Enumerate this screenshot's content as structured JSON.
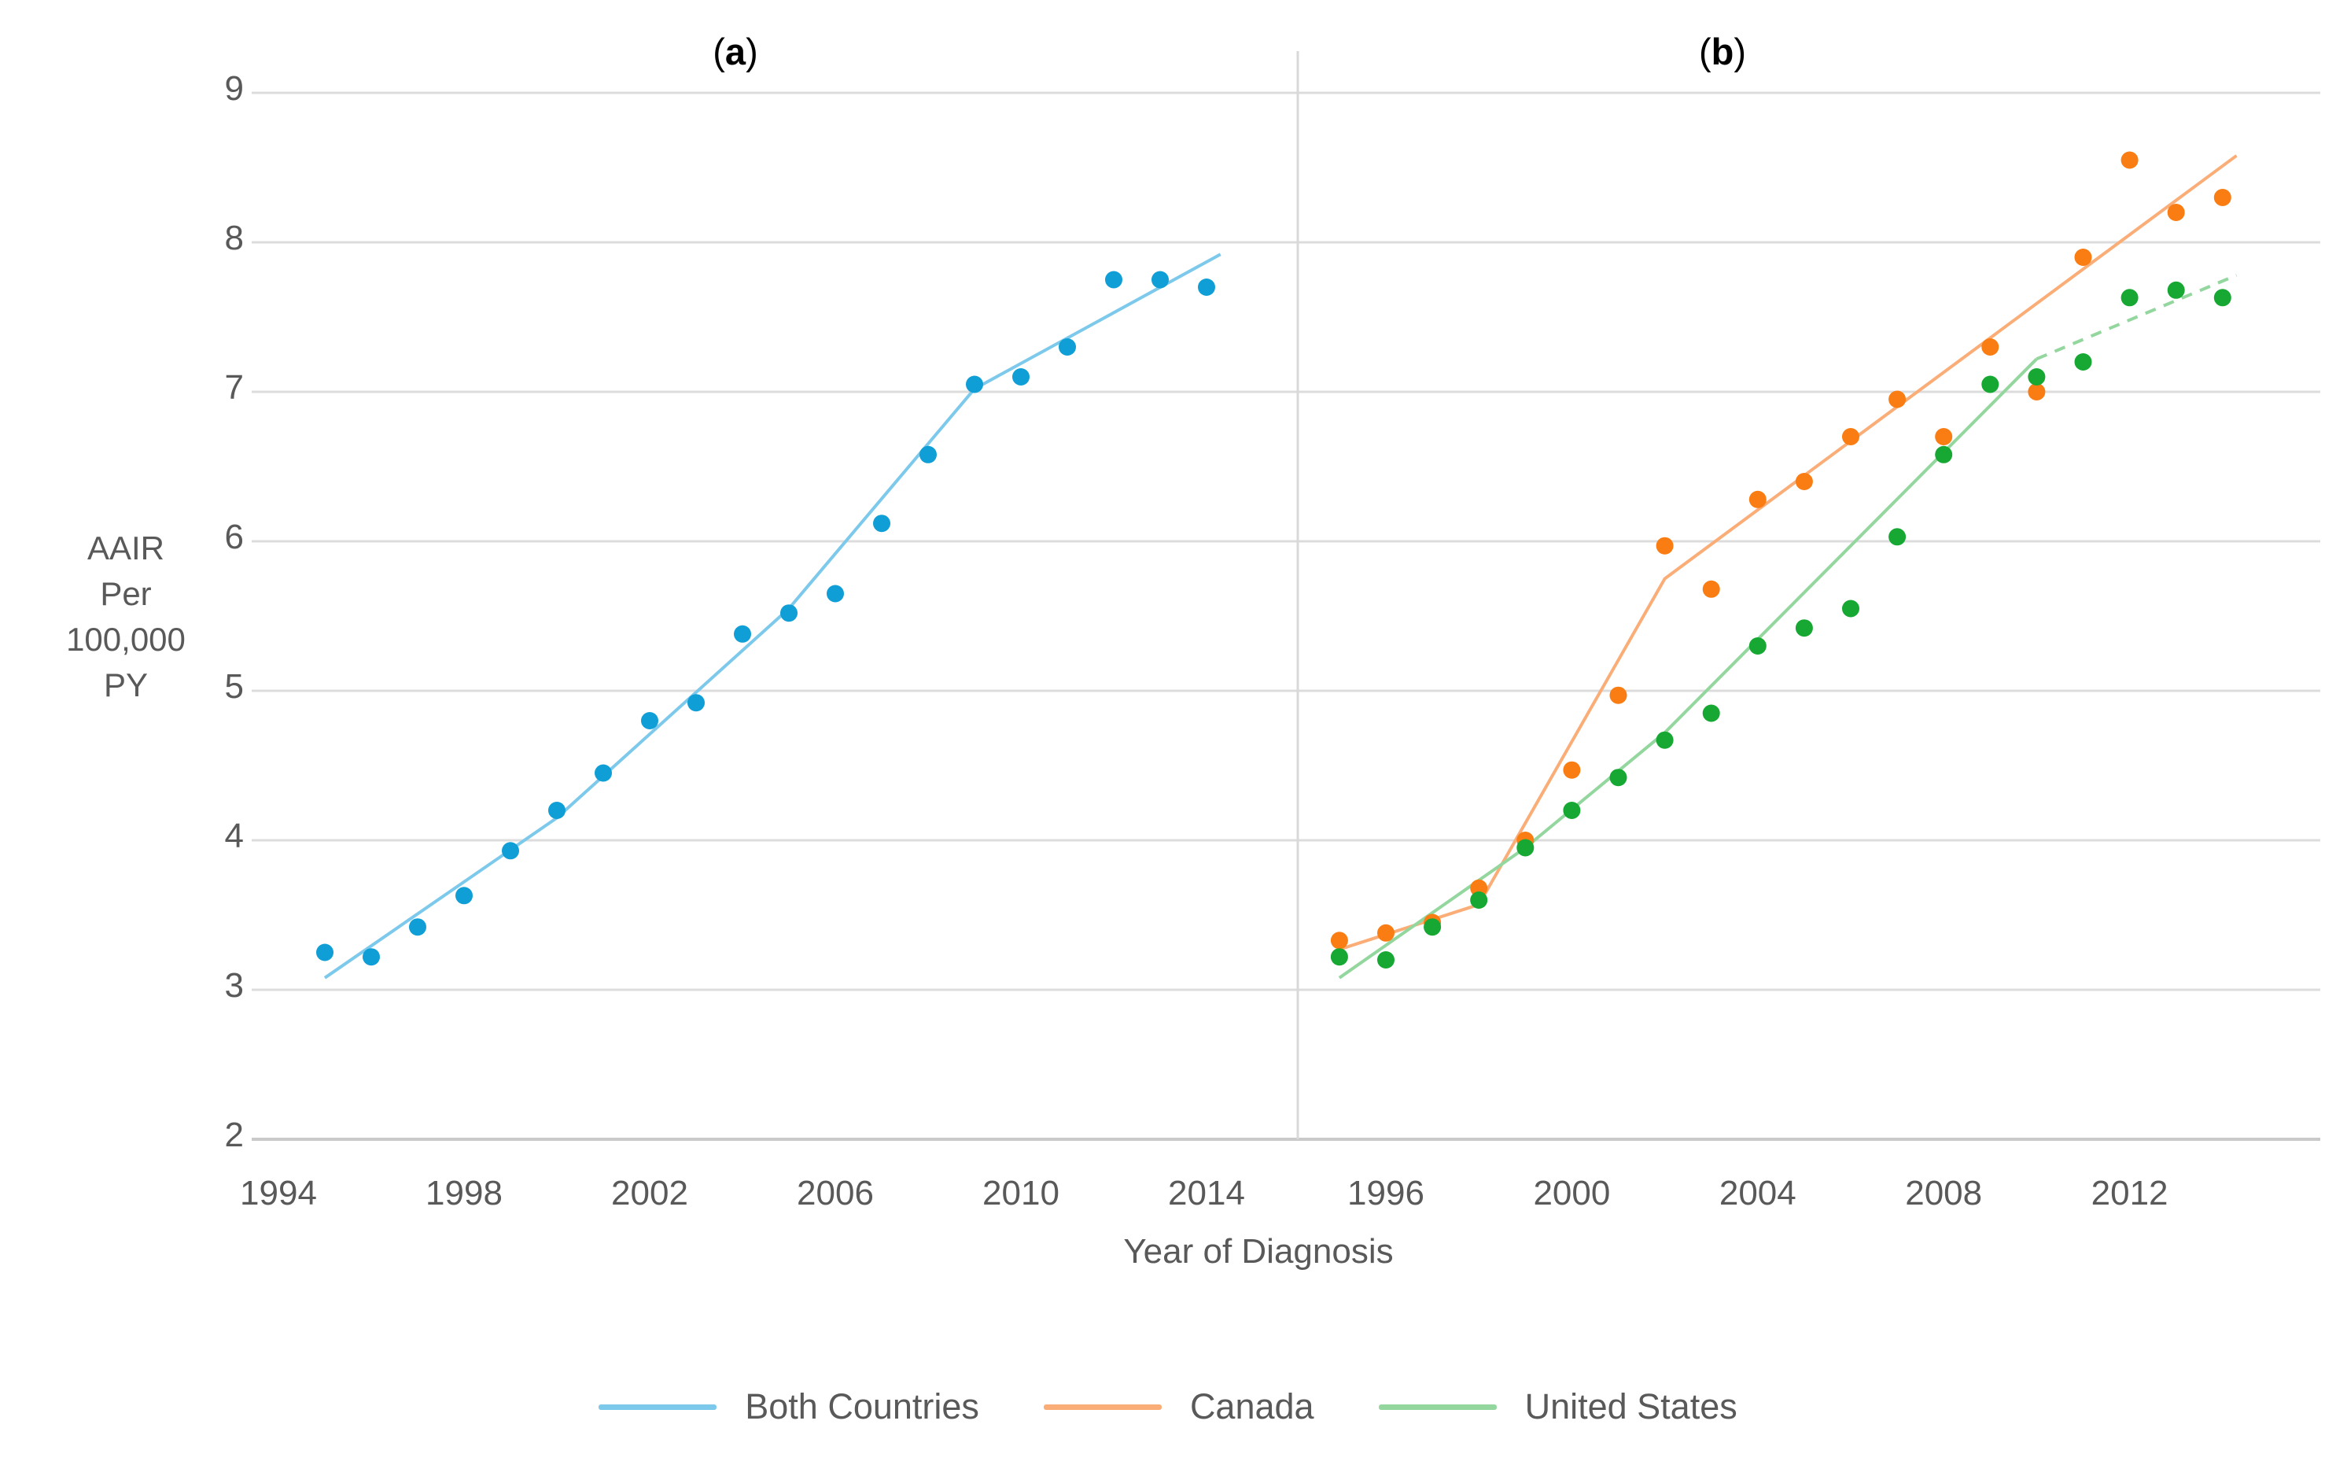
{
  "figure": {
    "panel_a_title": {
      "open": "(",
      "letter": "a",
      "close": ")"
    },
    "panel_b_title": {
      "open": "(",
      "letter": "b",
      "close": ")"
    },
    "y_axis": {
      "unit_lines": [
        "AAIR",
        "Per",
        "100,000",
        "PY"
      ],
      "ticks": [
        "9",
        "8",
        "7",
        "6",
        "5",
        "4",
        "3",
        "2"
      ]
    },
    "x_axis": {
      "title": "Year of Diagnosis",
      "panel_a_ticks": [
        "1994",
        "1998",
        "2002",
        "2006",
        "2010",
        "2014"
      ],
      "panel_b_ticks": [
        "1996",
        "2000",
        "2004",
        "2008",
        "2012"
      ]
    },
    "legend": [
      {
        "label": "Both Countries",
        "color": "#7CC9EC"
      },
      {
        "label": "Canada",
        "color": "#FBAD77"
      },
      {
        "label": "United States",
        "color": "#93D79E"
      }
    ],
    "colors": {
      "gridline": "#DCDCDC",
      "baseline": "#C9C9C9",
      "divider": "#D9D9D9",
      "text": "#595959"
    }
  },
  "chart_data": {
    "type": "scatter",
    "title": "AAIR Per 100,000 PY by Year of Diagnosis",
    "xlabel": "Year of Diagnosis",
    "ylabel": "AAIR Per 100,000 PY",
    "ylim": [
      2,
      9
    ],
    "grid": true,
    "legend_position": "bottom",
    "x": [
      1995,
      1996,
      1997,
      1998,
      1999,
      2000,
      2001,
      2002,
      2003,
      2004,
      2005,
      2006,
      2007,
      2008,
      2009,
      2010,
      2011,
      2012,
      2013,
      2014
    ],
    "panels": [
      {
        "id": "a",
        "title": "(a)",
        "xticks": [
          1994,
          1998,
          2002,
          2006,
          2010,
          2014
        ],
        "series": [
          {
            "name": "Both Countries",
            "dot_color": "#0F9ED5",
            "line_color": "#7CC9EC",
            "values": [
              3.25,
              3.22,
              3.42,
              3.63,
              3.93,
              4.2,
              4.45,
              4.8,
              4.92,
              5.38,
              5.52,
              5.65,
              6.12,
              6.58,
              7.05,
              7.1,
              7.3,
              7.75,
              7.75,
              7.7
            ],
            "trend_segments": [
              {
                "style": "solid",
                "points": [
                  [
                    1995,
                    3.08
                  ],
                  [
                    2000,
                    4.15
                  ],
                  [
                    2005,
                    5.55
                  ],
                  [
                    2009,
                    7.02
                  ],
                  [
                    2014.3,
                    7.92
                  ]
                ]
              }
            ]
          }
        ]
      },
      {
        "id": "b",
        "title": "(b)",
        "xticks": [
          1996,
          2000,
          2004,
          2008,
          2012
        ],
        "series": [
          {
            "name": "Canada",
            "dot_color": "#FA7D14",
            "line_color": "#FBAD77",
            "values": [
              3.33,
              3.38,
              3.45,
              3.68,
              4.0,
              4.47,
              4.97,
              5.97,
              5.68,
              6.28,
              6.4,
              6.7,
              6.95,
              6.7,
              7.3,
              7.0,
              7.9,
              8.55,
              8.2,
              8.3
            ],
            "trend_segments": [
              {
                "style": "solid",
                "points": [
                  [
                    1995,
                    3.27
                  ],
                  [
                    1998,
                    3.57
                  ],
                  [
                    2002,
                    5.75
                  ],
                  [
                    2014.3,
                    8.58
                  ]
                ]
              }
            ]
          },
          {
            "name": "United States",
            "dot_color": "#16A832",
            "line_color": "#93D79E",
            "values": [
              3.22,
              3.2,
              3.42,
              3.6,
              3.95,
              4.2,
              4.42,
              4.67,
              4.85,
              5.3,
              5.42,
              5.55,
              6.03,
              6.58,
              7.05,
              7.1,
              7.2,
              7.63,
              7.68,
              7.63
            ],
            "trend_segments": [
              {
                "style": "solid",
                "points": [
                  [
                    1995,
                    3.08
                  ],
                  [
                    1999,
                    3.95
                  ],
                  [
                    2002,
                    4.72
                  ],
                  [
                    2010,
                    7.22
                  ]
                ]
              },
              {
                "style": "dashed",
                "points": [
                  [
                    2010,
                    7.22
                  ],
                  [
                    2014.3,
                    7.78
                  ]
                ]
              }
            ]
          }
        ]
      }
    ]
  }
}
